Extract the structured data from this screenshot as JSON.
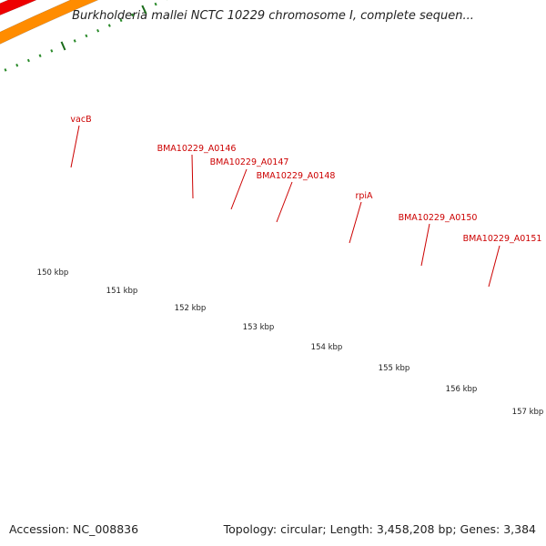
{
  "title": "Burkholderia mallei NCTC 10229 chromosome I, complete sequen...",
  "accession": "Accession: NC_008836",
  "topology": "Topology: circular; Length: 3,458,208 bp; Genes: 3,384",
  "colors": {
    "label": "#cc0000",
    "backbone": "#808080",
    "tick_major": "#1a6b1a",
    "tick_minor": "#2a8a2a",
    "cds_red": "#ee0000",
    "vacB": "#ff8c00",
    "BMA10229_A0146": "#e87c7c",
    "BMA10229_A0148": "#2de89a",
    "rpiA": "#1fc8c8",
    "BMA10229_A0150": "#ff8c00",
    "BMA10229_A0151": "#c0c0c0",
    "blue_gene": "#1010dd"
  },
  "scale_labels": [
    "150 kbp",
    "151 kbp",
    "152 kbp",
    "153 kbp",
    "154 kbp",
    "155 kbp",
    "156 kbp",
    "157 kbp"
  ],
  "gene_labels": [
    {
      "text": "vacB",
      "gene": "vacB"
    },
    {
      "text": "BMA10229_A0146",
      "gene": "BMA10229_A0146"
    },
    {
      "text": "BMA10229_A0147",
      "gene": "BMA10229_A0147"
    },
    {
      "text": "BMA10229_A0148",
      "gene": "BMA10229_A0148"
    },
    {
      "text": "rpiA",
      "gene": "rpiA"
    },
    {
      "text": "BMA10229_A0150",
      "gene": "BMA10229_A0150"
    },
    {
      "text": "BMA10229_A0151",
      "gene": "BMA10229_A0151"
    }
  ]
}
